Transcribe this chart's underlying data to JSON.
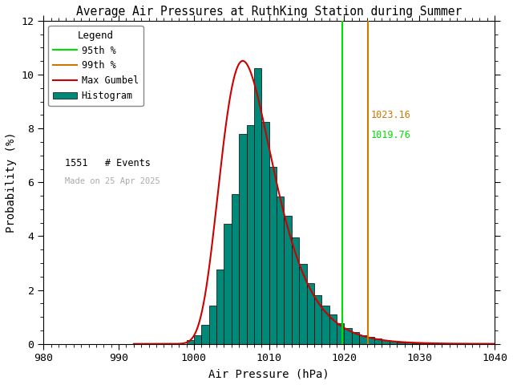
{
  "title": "Average Air Pressures at RuthKing Station during Summer",
  "xlabel": "Air Pressure (hPa)",
  "ylabel": "Probability (%)",
  "xlim": [
    980,
    1040
  ],
  "ylim": [
    0,
    12
  ],
  "xticks": [
    980,
    990,
    1000,
    1010,
    1020,
    1030,
    1040
  ],
  "yticks": [
    0,
    2,
    4,
    6,
    8,
    10,
    12
  ],
  "percentile_95": 1019.76,
  "percentile_99": 1023.16,
  "percentile_95_color": "#00dd00",
  "percentile_99_color": "#cc7700",
  "hist_color": "#008878",
  "hist_edge_color": "#000000",
  "gumbel_color": "#cc0000",
  "n_events": 1551,
  "made_on": "Made on 25 Apr 2025",
  "background_color": "#ffffff",
  "bin_width": 1.0,
  "gumbel_mu": 1006.5,
  "gumbel_beta": 3.5,
  "hist_bins_left": [
    999,
    1000,
    1001,
    1002,
    1003,
    1004,
    1005,
    1006,
    1007,
    1008,
    1009,
    1010,
    1011,
    1012,
    1013,
    1014,
    1015,
    1016,
    1017,
    1018,
    1019,
    1020,
    1021,
    1022,
    1023,
    1024,
    1025,
    1026,
    1027,
    1028,
    1029,
    1030,
    1031,
    1032,
    1033,
    1034
  ],
  "hist_probs": [
    0.13,
    0.32,
    0.71,
    1.42,
    2.77,
    4.45,
    5.55,
    7.8,
    8.12,
    10.25,
    8.25,
    6.58,
    5.48,
    4.77,
    3.94,
    2.97,
    2.26,
    1.81,
    1.42,
    1.1,
    0.77,
    0.58,
    0.45,
    0.32,
    0.26,
    0.19,
    0.13,
    0.1,
    0.065,
    0.065,
    0.032,
    0.032,
    0.032,
    0.013,
    0.006,
    0.0
  ]
}
